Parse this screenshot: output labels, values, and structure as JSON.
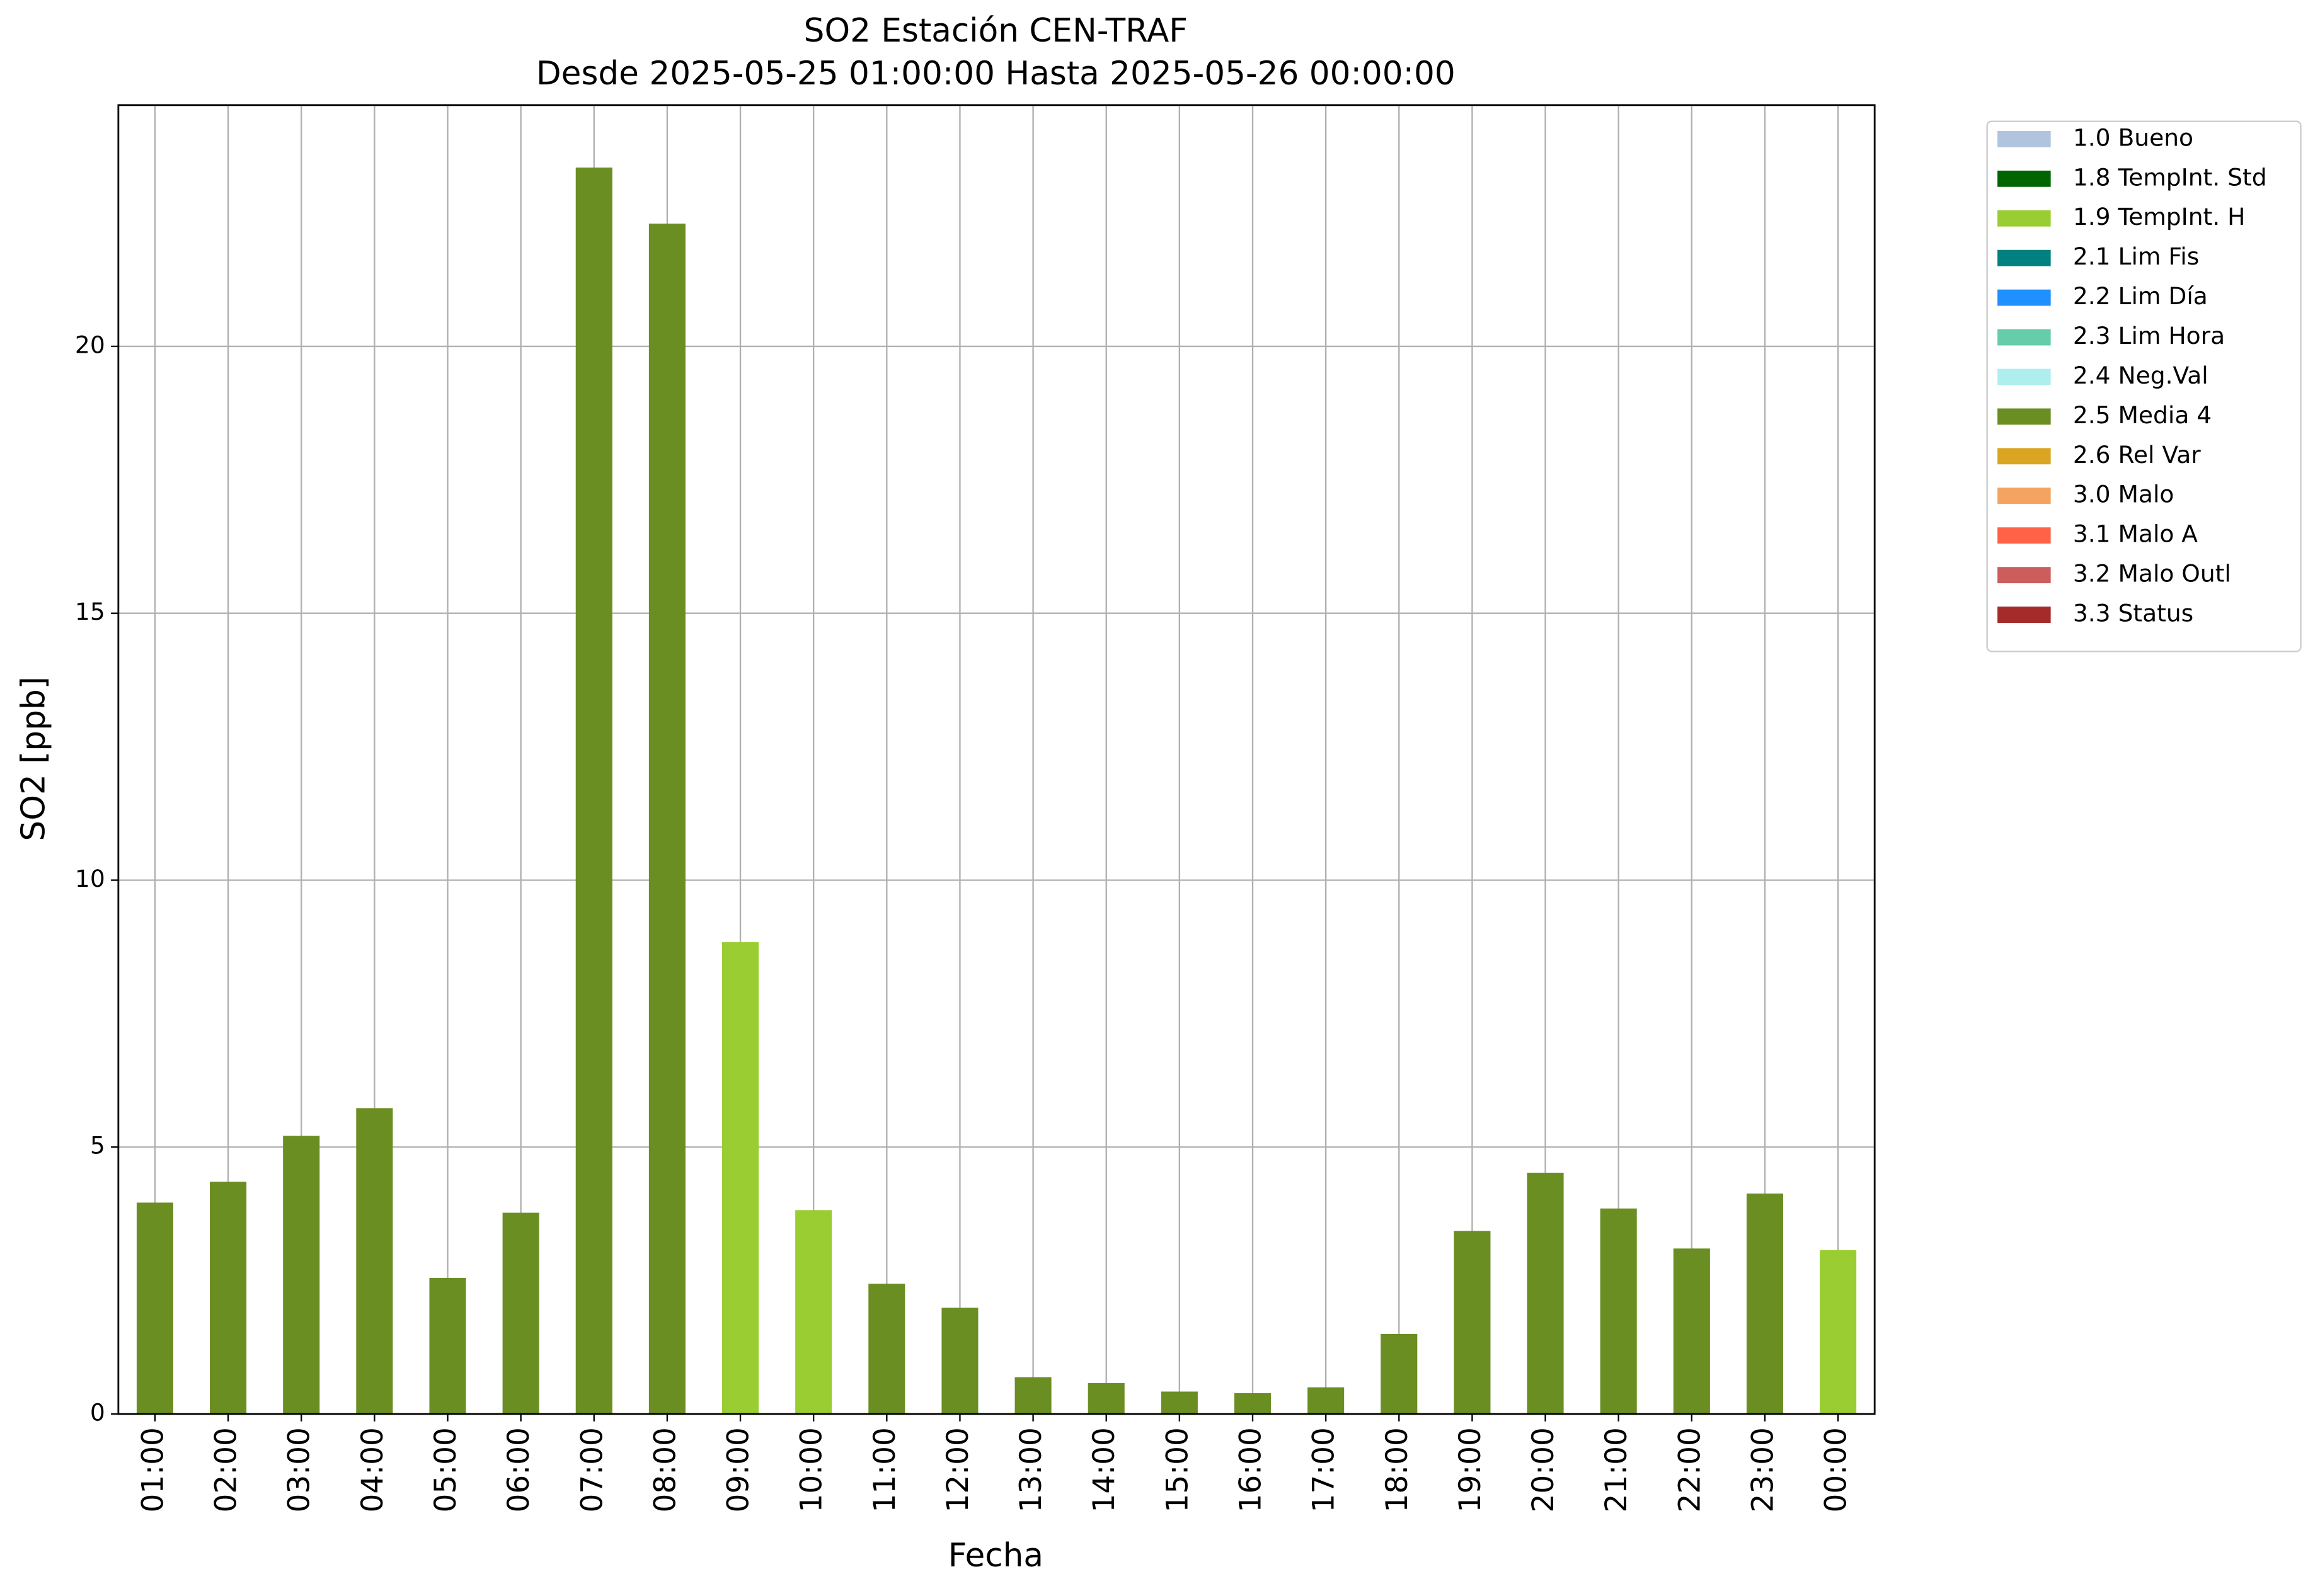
{
  "chart_data": {
    "type": "bar",
    "title": "SO2 Estación CEN-TRAF",
    "subtitle": "Desde 2025-05-25 01:00:00 Hasta 2025-05-26 00:00:00",
    "x_label": "Fecha",
    "y_label": "SO2 [ppb]",
    "categories": [
      "01:00",
      "02:00",
      "03:00",
      "04:00",
      "05:00",
      "06:00",
      "07:00",
      "08:00",
      "09:00",
      "10:00",
      "11:00",
      "12:00",
      "13:00",
      "14:00",
      "15:00",
      "16:00",
      "17:00",
      "18:00",
      "19:00",
      "20:00",
      "21:00",
      "22:00",
      "23:00",
      "00:00"
    ],
    "series": [
      {
        "name": "1.0 Bueno",
        "color": "#b0c4de",
        "values": [
          null,
          null,
          null,
          null,
          null,
          null,
          null,
          null,
          null,
          null,
          null,
          null,
          null,
          null,
          null,
          null,
          null,
          null,
          null,
          null,
          null,
          null,
          null,
          null
        ]
      },
      {
        "name": "1.8 TempInt. Std",
        "color": "#006400",
        "values": [
          null,
          null,
          null,
          null,
          null,
          null,
          null,
          null,
          null,
          null,
          null,
          null,
          null,
          null,
          null,
          null,
          null,
          null,
          null,
          null,
          null,
          null,
          null,
          null
        ]
      },
      {
        "name": "1.9 TempInt. H",
        "color": "#9acd32",
        "values": [
          null,
          null,
          null,
          null,
          null,
          null,
          null,
          null,
          8.84,
          3.82,
          null,
          null,
          null,
          null,
          null,
          null,
          null,
          null,
          null,
          null,
          null,
          null,
          null,
          3.07
        ]
      },
      {
        "name": "2.1 Lim Fis",
        "color": "#008080",
        "values": [
          null,
          null,
          null,
          null,
          null,
          null,
          null,
          null,
          null,
          null,
          null,
          null,
          null,
          null,
          null,
          null,
          null,
          null,
          null,
          null,
          null,
          null,
          null,
          null
        ]
      },
      {
        "name": "2.2 Lim Día",
        "color": "#1e90ff",
        "values": [
          null,
          null,
          null,
          null,
          null,
          null,
          null,
          null,
          null,
          null,
          null,
          null,
          null,
          null,
          null,
          null,
          null,
          null,
          null,
          null,
          null,
          null,
          null,
          null
        ]
      },
      {
        "name": "2.3 Lim Hora",
        "color": "#66cdaa",
        "values": [
          null,
          null,
          null,
          null,
          null,
          null,
          null,
          null,
          null,
          null,
          null,
          null,
          null,
          null,
          null,
          null,
          null,
          null,
          null,
          null,
          null,
          null,
          null,
          null
        ]
      },
      {
        "name": "2.4 Neg.Val",
        "color": "#afeeee",
        "values": [
          null,
          null,
          null,
          null,
          null,
          null,
          null,
          null,
          null,
          null,
          null,
          null,
          null,
          null,
          null,
          null,
          null,
          null,
          null,
          null,
          null,
          null,
          null,
          null
        ]
      },
      {
        "name": "2.5 Media 4",
        "color": "#6b8e23",
        "values": [
          3.96,
          4.35,
          5.21,
          5.73,
          2.55,
          3.77,
          23.35,
          22.3,
          null,
          null,
          2.44,
          1.99,
          0.69,
          0.58,
          0.42,
          0.39,
          0.5,
          1.5,
          3.43,
          4.52,
          3.85,
          3.1,
          4.13,
          null
        ]
      },
      {
        "name": "2.6 Rel Var",
        "color": "#daa520",
        "values": [
          null,
          null,
          null,
          null,
          null,
          null,
          null,
          null,
          null,
          null,
          null,
          null,
          null,
          null,
          null,
          null,
          null,
          null,
          null,
          null,
          null,
          null,
          null,
          null
        ]
      },
      {
        "name": "3.0 Malo",
        "color": "#f4a460",
        "values": [
          null,
          null,
          null,
          null,
          null,
          null,
          null,
          null,
          null,
          null,
          null,
          null,
          null,
          null,
          null,
          null,
          null,
          null,
          null,
          null,
          null,
          null,
          null,
          null
        ]
      },
      {
        "name": "3.1 Malo A",
        "color": "#ff6347",
        "values": [
          null,
          null,
          null,
          null,
          null,
          null,
          null,
          null,
          null,
          null,
          null,
          null,
          null,
          null,
          null,
          null,
          null,
          null,
          null,
          null,
          null,
          null,
          null,
          null
        ]
      },
      {
        "name": "3.2 Malo Outl",
        "color": "#cd5c5c",
        "values": [
          null,
          null,
          null,
          null,
          null,
          null,
          null,
          null,
          null,
          null,
          null,
          null,
          null,
          null,
          null,
          null,
          null,
          null,
          null,
          null,
          null,
          null,
          null,
          null
        ]
      },
      {
        "name": "3.3 Status",
        "color": "#a52a2a",
        "values": [
          null,
          null,
          null,
          null,
          null,
          null,
          null,
          null,
          null,
          null,
          null,
          null,
          null,
          null,
          null,
          null,
          null,
          null,
          null,
          null,
          null,
          null,
          null,
          null
        ]
      }
    ],
    "ylim": [
      0,
      24.52
    ],
    "yticks": [
      0,
      5,
      10,
      15,
      20
    ],
    "grid": true,
    "legend": "outside-upper-right"
  }
}
